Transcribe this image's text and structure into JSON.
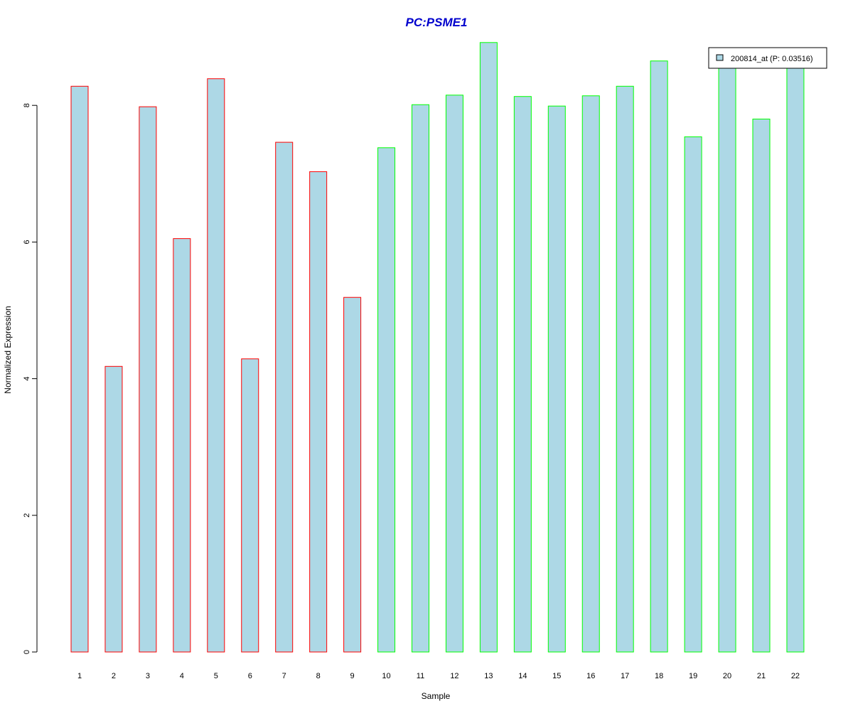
{
  "chart_data": {
    "type": "bar",
    "title": "PC:PSME1",
    "xlabel": "Sample",
    "ylabel": "Normalized Expression",
    "ylim": [
      0,
      9
    ],
    "yticks": [
      0,
      2,
      4,
      6,
      8
    ],
    "grid": false,
    "legend_position": "top-right",
    "categories": [
      "1",
      "2",
      "3",
      "4",
      "5",
      "6",
      "7",
      "8",
      "9",
      "10",
      "11",
      "12",
      "13",
      "14",
      "15",
      "16",
      "17",
      "18",
      "19",
      "20",
      "21",
      "22"
    ],
    "values": [
      8.28,
      4.18,
      7.98,
      6.05,
      8.39,
      4.29,
      7.46,
      7.03,
      5.19,
      7.38,
      8.01,
      8.15,
      8.92,
      8.13,
      7.99,
      8.14,
      8.28,
      8.65,
      7.54,
      8.6,
      7.8,
      8.65
    ],
    "series": [
      {
        "name": "200814_at (P: 0.03516)",
        "fill": "#add8e6"
      }
    ],
    "group_border_colors": [
      "#ff0000",
      "#ff0000",
      "#ff0000",
      "#ff0000",
      "#ff0000",
      "#ff0000",
      "#ff0000",
      "#ff0000",
      "#ff0000",
      "#00ff00",
      "#00ff00",
      "#00ff00",
      "#00ff00",
      "#00ff00",
      "#00ff00",
      "#00ff00",
      "#00ff00",
      "#00ff00",
      "#00ff00",
      "#00ff00",
      "#00ff00",
      "#00ff00"
    ],
    "title_color": "#0000cd"
  }
}
